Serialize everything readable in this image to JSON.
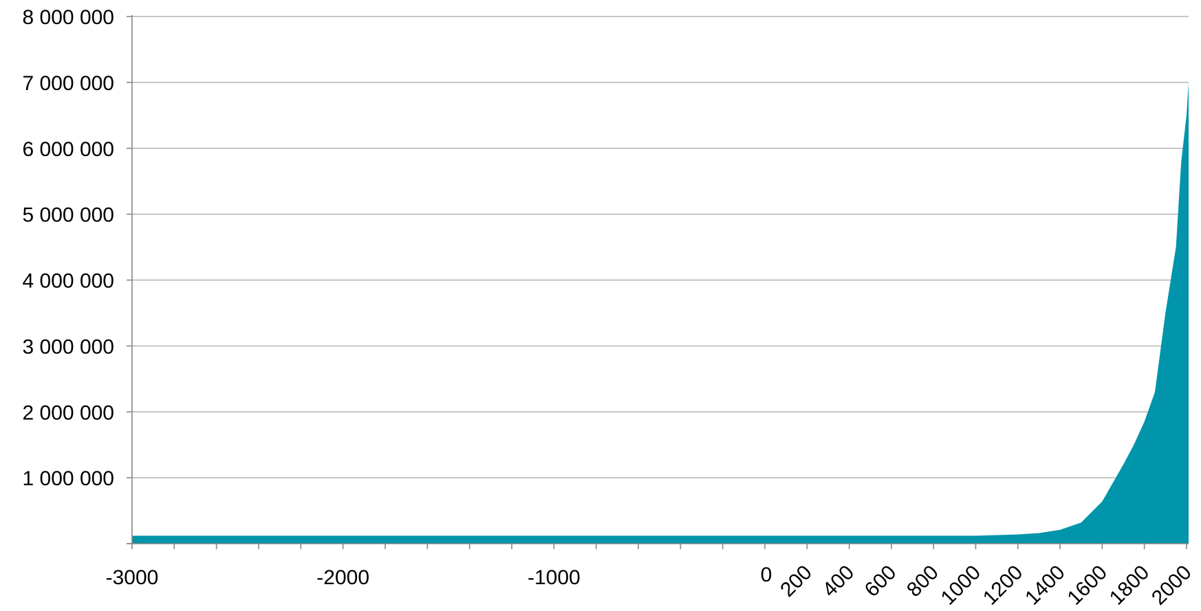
{
  "chart_data": {
    "type": "area",
    "title": "",
    "xlabel": "",
    "ylabel": "",
    "color": "#0095AA",
    "grid_color": "#B4B4B4",
    "axis_color": "#868686",
    "grid": true,
    "legend": "none",
    "ylim": [
      0,
      8000000
    ],
    "y_ticks": [
      0,
      1000000,
      2000000,
      3000000,
      4000000,
      5000000,
      6000000,
      7000000,
      8000000
    ],
    "y_tick_labels": [
      "",
      "1 000 000",
      "2 000 000",
      "3 000 000",
      "4 000 000",
      "5 000 000",
      "6 000 000",
      "7 000 000",
      "8 000 000"
    ],
    "x_tick_labels_bc": [
      "-3000",
      "-2000",
      "-1000"
    ],
    "x_tick_labels_ad": [
      "0",
      "200",
      "400",
      "600",
      "800",
      "1000",
      "1200",
      "1400",
      "1600",
      "1800",
      "2000"
    ],
    "x": [
      -3000,
      -2000,
      -1000,
      0,
      200,
      400,
      600,
      800,
      1000,
      1200,
      1300,
      1400,
      1500,
      1600,
      1700,
      1750,
      1800,
      1850,
      1900,
      1950,
      1975,
      2000,
      2010
    ],
    "values": [
      120000,
      120000,
      120000,
      120000,
      120000,
      120000,
      120000,
      120000,
      120000,
      140000,
      160000,
      210000,
      320000,
      640000,
      1200000,
      1500000,
      1850000,
      2300000,
      3500000,
      4500000,
      5800000,
      6500000,
      7000000
    ]
  }
}
